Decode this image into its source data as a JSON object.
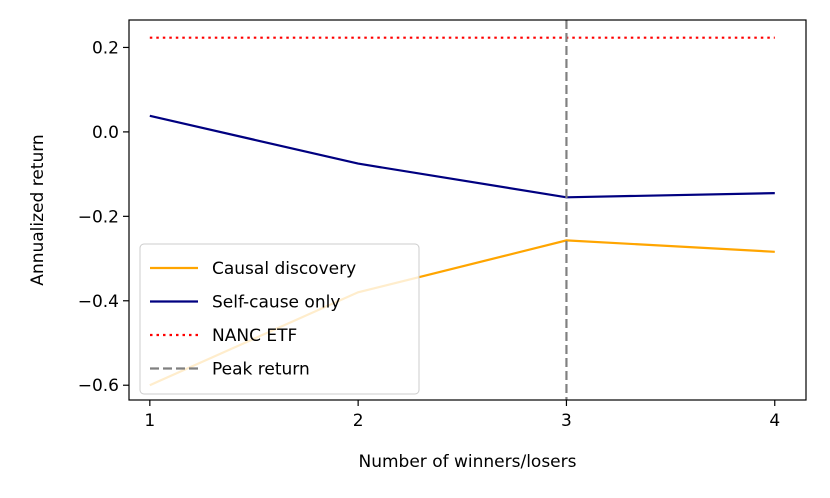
{
  "chart_data": {
    "type": "line",
    "title": "",
    "xlabel": "Number of winners/losers",
    "ylabel": "Annualized return",
    "x": [
      1,
      2,
      3,
      4
    ],
    "xlim": [
      0.9,
      4.15
    ],
    "ylim": [
      -0.635,
      0.265
    ],
    "xticks": [
      1,
      2,
      3,
      4
    ],
    "yticks": [
      0.2,
      0.0,
      -0.2,
      -0.4,
      -0.6
    ],
    "ytick_labels": [
      "0.2",
      "0.0",
      "−0.2",
      "−0.4",
      "−0.6"
    ],
    "grid": false,
    "legend_position": "lower-left",
    "series": [
      {
        "name": "Causal discovery",
        "values": [
          -0.6,
          -0.38,
          -0.257,
          -0.284
        ],
        "color": "#ffa500",
        "style": "solid"
      },
      {
        "name": "Self-cause only",
        "values": [
          0.038,
          -0.075,
          -0.155,
          -0.145
        ],
        "color": "#000080",
        "style": "solid"
      },
      {
        "name": "NANC ETF",
        "values": [
          0.223,
          0.223,
          0.223,
          0.223
        ],
        "color": "#ff0000",
        "style": "dotted"
      }
    ],
    "vlines": [
      {
        "name": "Peak return",
        "x": 3,
        "color": "#808080",
        "style": "dashed"
      }
    ]
  }
}
